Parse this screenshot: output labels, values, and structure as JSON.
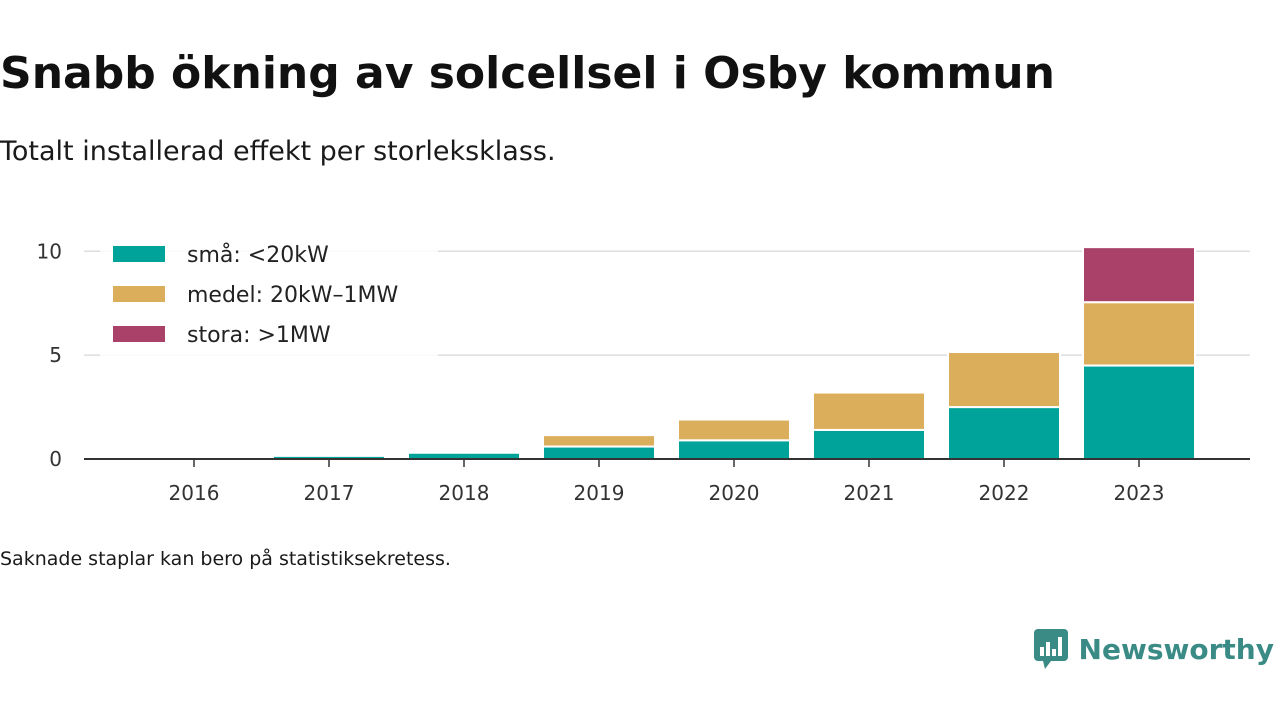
{
  "header": {
    "title": "Snabb ökning av solcellsel i Osby kommun",
    "subtitle": "Totalt installerad effekt per storleksklass."
  },
  "footer": {
    "note": "Saknade staplar kan bero på statistiksekretess.",
    "logo_text": "Newsworthy"
  },
  "chart_data": {
    "type": "bar",
    "stacked": true,
    "categories": [
      "2016",
      "2017",
      "2018",
      "2019",
      "2020",
      "2021",
      "2022",
      "2023"
    ],
    "series": [
      {
        "name": "små: <20kW",
        "color": "#00a39a",
        "values": [
          0.02,
          0.15,
          0.3,
          0.6,
          0.9,
          1.4,
          2.5,
          4.5
        ]
      },
      {
        "name": "medel: 20kW–1MW",
        "color": "#dbae5b",
        "values": [
          0,
          0,
          0,
          0.55,
          1.0,
          1.8,
          2.65,
          3.05
        ]
      },
      {
        "name": "stora: >1MW",
        "color": "#a94168",
        "values": [
          0,
          0,
          0,
          0,
          0,
          0,
          0,
          2.65
        ]
      }
    ],
    "ylim": [
      0,
      10.4
    ],
    "yticks": [
      0,
      5,
      10
    ],
    "grid": true,
    "legend_position": "top-left",
    "xlabel": "",
    "ylabel": ""
  }
}
